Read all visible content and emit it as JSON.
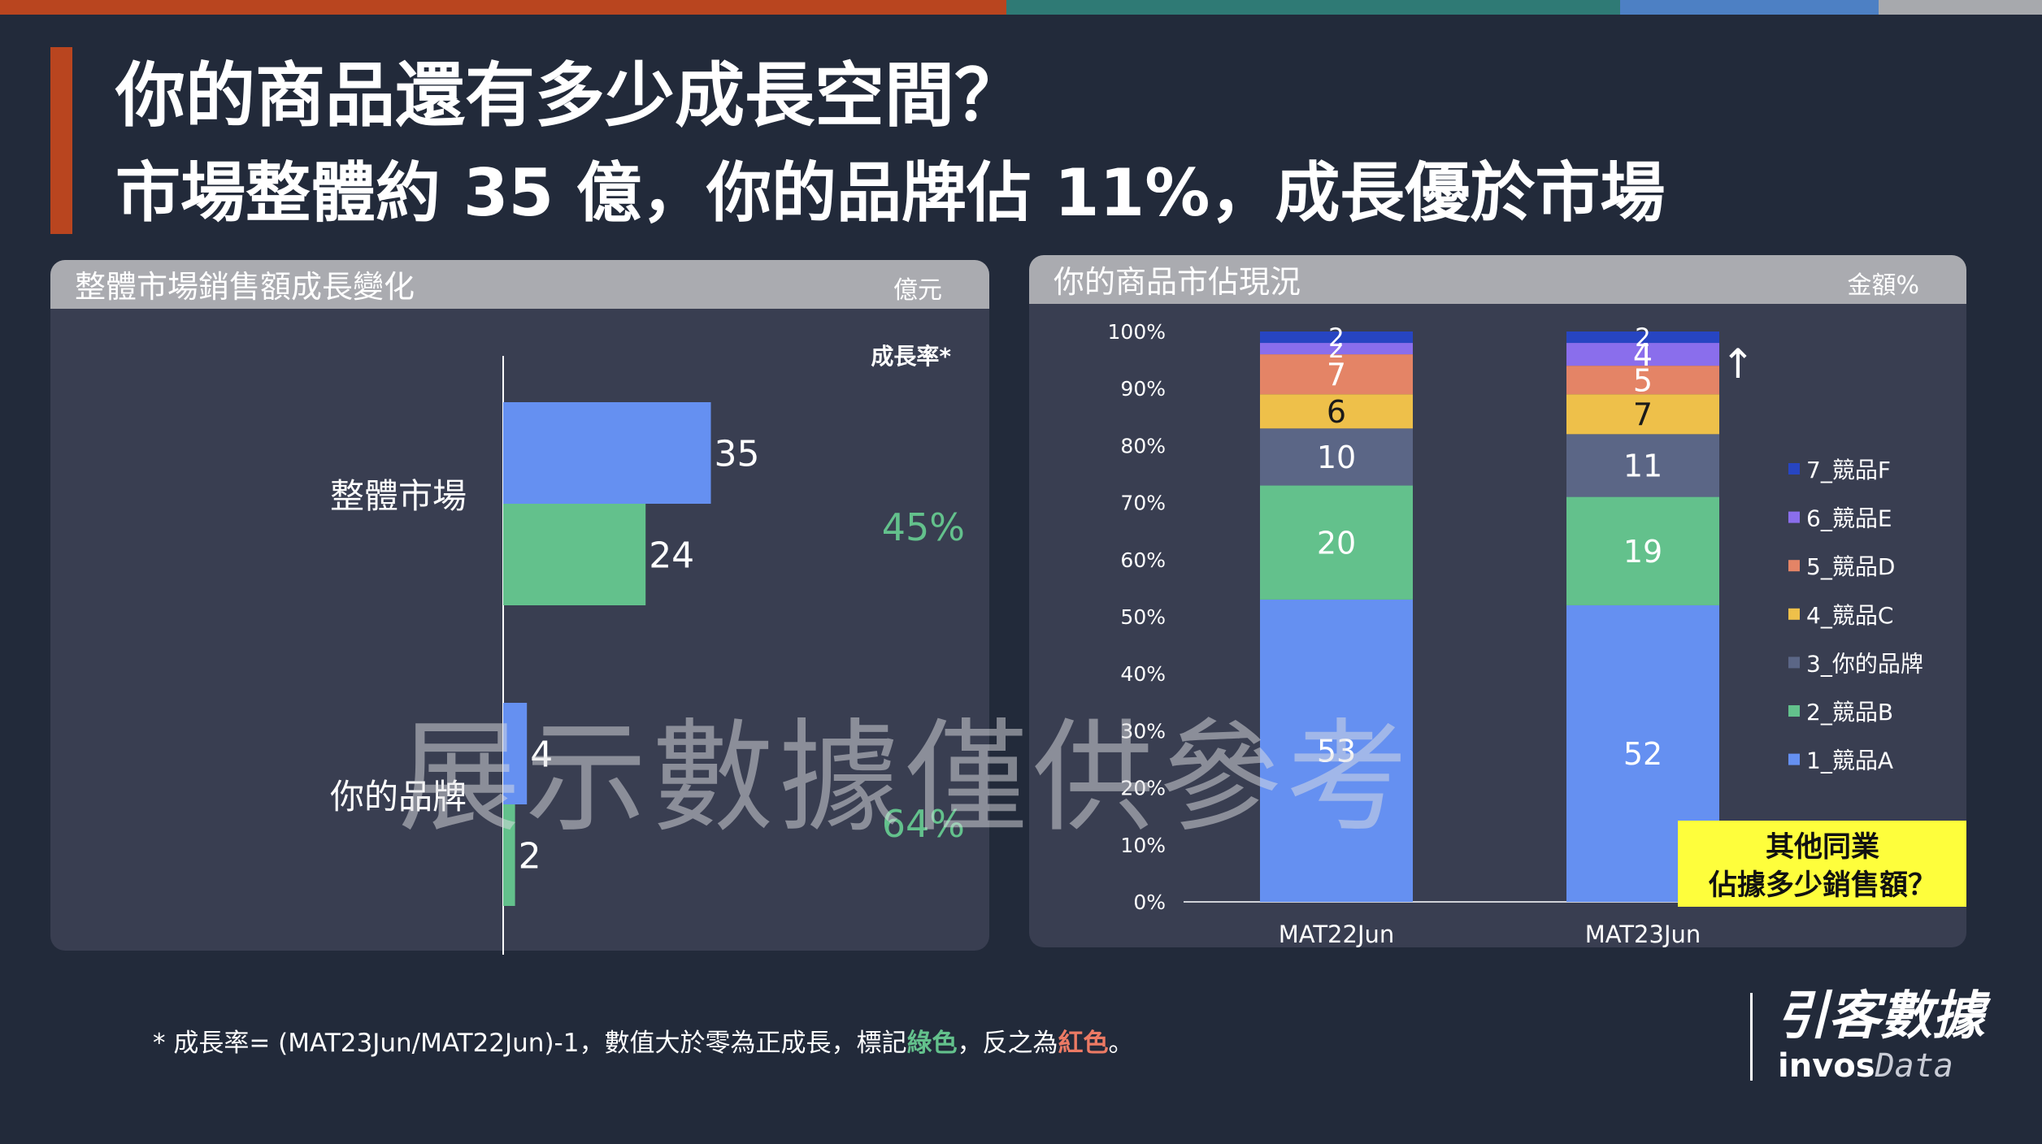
{
  "slide": {
    "title": "你的商品還有多少成長空間？",
    "subtitle": "市場整體約 35 億，你的品牌佔 11%，成長優於市場",
    "top_bar_colors": [
      "#b9451f",
      "#2f7a75",
      "#4d80c4",
      "#a7a9ad"
    ],
    "accent": "#b9451f"
  },
  "left_panel": {
    "title": "整體市場銷售額成長變化",
    "unit": "億元"
  },
  "right_panel": {
    "title": "你的商品市佔現況",
    "unit": "金額%"
  },
  "chart_data": [
    {
      "type": "bar",
      "orientation": "horizontal",
      "title": "整體市場銷售額成長變化",
      "unit": "億元",
      "categories": [
        "整體市場",
        "你的品牌"
      ],
      "series": [
        {
          "values": [
            35,
            4
          ],
          "color": "#6590f1"
        },
        {
          "values": [
            24,
            2
          ],
          "color": "#63c18c"
        }
      ],
      "growth_header": "成長率*",
      "growth": [
        "45%",
        "64%"
      ],
      "growth_color": "#63c18c"
    },
    {
      "type": "bar",
      "stacked": true,
      "title": "你的商品市佔現況",
      "unit": "金額%",
      "categories": [
        "MAT22Jun",
        "MAT23Jun"
      ],
      "ylim": [
        0,
        100
      ],
      "yticks": [
        "0%",
        "10%",
        "20%",
        "30%",
        "40%",
        "50%",
        "60%",
        "70%",
        "80%",
        "90%",
        "100%"
      ],
      "legend_position": "right",
      "series": [
        {
          "name": "1_競品A",
          "values": [
            53,
            52
          ],
          "color": "#6590f1",
          "label_color": "#ffffff"
        },
        {
          "name": "2_競品B",
          "values": [
            20,
            19
          ],
          "color": "#63c18c",
          "label_color": "#ffffff"
        },
        {
          "name": "3_你的品牌",
          "values": [
            10,
            11
          ],
          "color": "#5b6686",
          "label_color": "#ffffff"
        },
        {
          "name": "4_競品C",
          "values": [
            6,
            7
          ],
          "color": "#eec04a",
          "label_color": "#1a1a1a"
        },
        {
          "name": "5_競品D",
          "values": [
            7,
            5
          ],
          "color": "#e48466",
          "label_color": "#ffffff"
        },
        {
          "name": "6_競品E",
          "values": [
            2,
            4
          ],
          "color": "#8a6eec",
          "label_color": "#ffffff"
        },
        {
          "name": "7_競品F",
          "values": [
            2,
            2
          ],
          "color": "#2745c2",
          "label_color": "#ffffff"
        }
      ],
      "arrow": "↑",
      "callout": {
        "line1": "其他同業",
        "line2": "佔據多少銷售額？",
        "color": "#fefe3c"
      }
    }
  ],
  "watermark": "展示數據僅供參考",
  "footnote": {
    "prefix": "* 成長率= (MAT23Jun/MAT22Jun)-1，數值大於零為正成長，標記",
    "green": "綠色",
    "middle": "，反之為",
    "red": "紅色",
    "suffix": "。"
  },
  "logo": {
    "cn": "引客數據",
    "en_bold": "invos",
    "en_light": "Data"
  }
}
